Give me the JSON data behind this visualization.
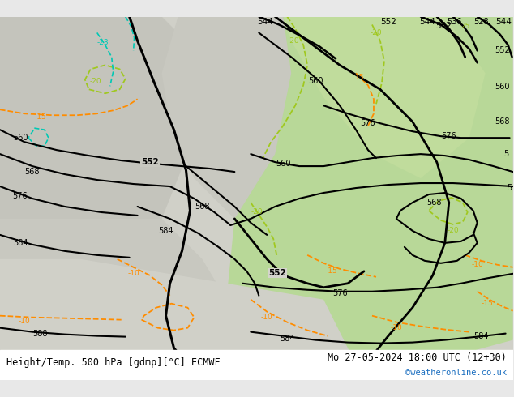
{
  "title_left": "Height/Temp. 500 hPa [gdmp][°C] ECMWF",
  "title_right": "Mo 27-05-2024 18:00 UTC (12+30)",
  "credit": "©weatheronline.co.uk",
  "bg_color": "#f0f0f0",
  "land_light_green": "#c8e6b0",
  "land_gray": "#c8c8c8",
  "sea_gray": "#d8d8d8",
  "contour_height_color": "#000000",
  "contour_temp_positive_color": "#ff8c00",
  "contour_temp_negative_color": "#ff8c00",
  "contour_temp_green_color": "#90c020",
  "contour_temp_cyan_color": "#00c8c8",
  "height_levels": [
    528,
    536,
    544,
    552,
    560,
    568,
    576,
    584,
    588
  ],
  "figsize": [
    6.34,
    4.9
  ],
  "dpi": 100
}
